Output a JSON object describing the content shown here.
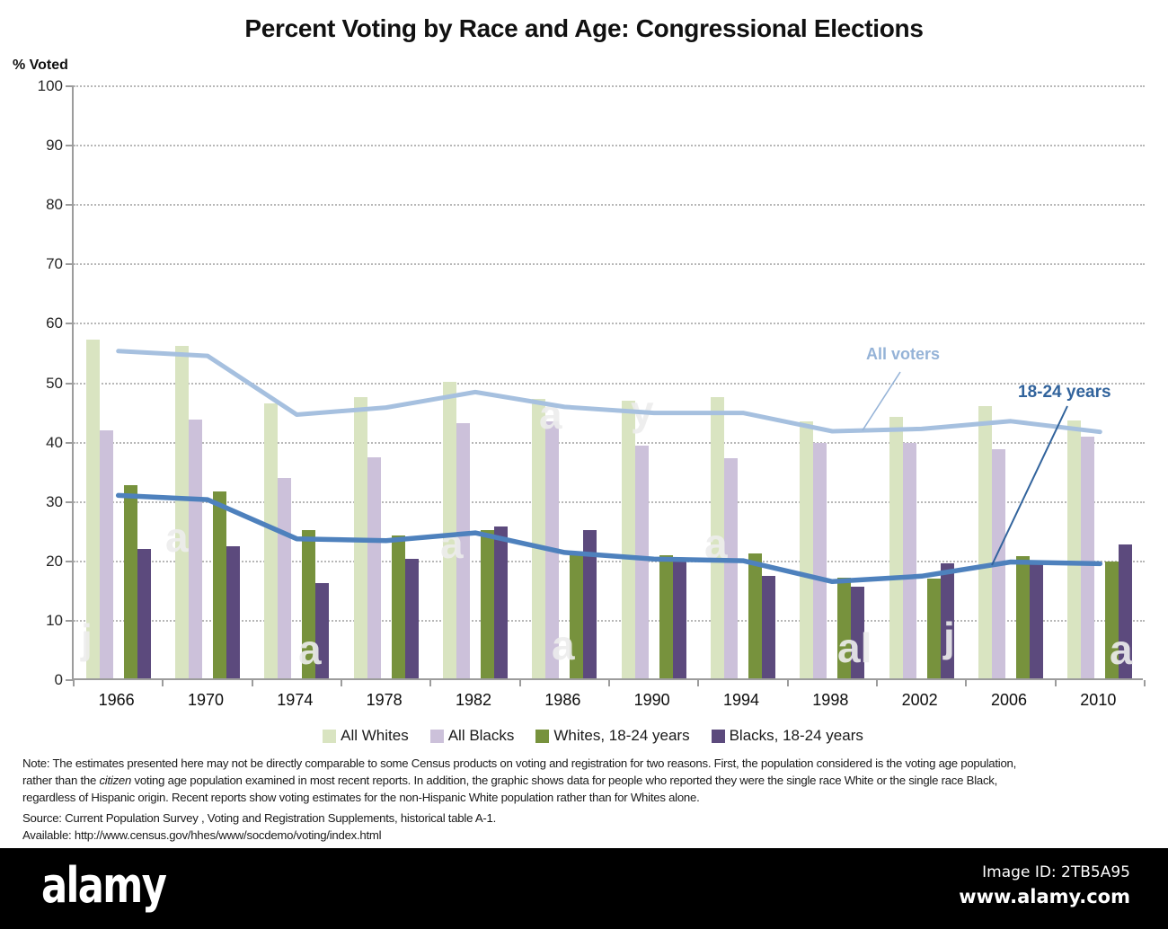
{
  "title": "Percent Voting by Race and Age:  Congressional Elections",
  "y_axis_title": "% Voted",
  "chart_data": {
    "type": "bar+line",
    "title": "Percent Voting by Race and Age:  Congressional Elections",
    "ylabel": "% Voted",
    "categories": [
      "1966",
      "1970",
      "1974",
      "1978",
      "1982",
      "1986",
      "1990",
      "1994",
      "1998",
      "2002",
      "2006",
      "2010"
    ],
    "series": [
      {
        "name": "All Whites",
        "color": "#D9E4C1",
        "values": [
          57.0,
          56.0,
          46.3,
          47.3,
          49.9,
          47.0,
          46.7,
          47.3,
          43.3,
          44.1,
          45.8,
          43.4
        ]
      },
      {
        "name": "All Blacks",
        "color": "#CCC1DA",
        "values": [
          41.7,
          43.5,
          33.8,
          37.2,
          43.0,
          43.2,
          39.2,
          37.1,
          39.6,
          39.7,
          38.6,
          40.7
        ]
      },
      {
        "name": "Whites, 18-24 years",
        "color": "#77923D",
        "values": [
          32.5,
          31.4,
          25.0,
          24.1,
          24.9,
          21.3,
          20.7,
          21.0,
          16.9,
          16.8,
          20.6,
          19.6
        ]
      },
      {
        "name": "Blacks, 18-24 years",
        "color": "#5C4A7D",
        "values": [
          21.8,
          22.3,
          16.1,
          20.1,
          25.5,
          25.0,
          19.9,
          17.3,
          15.4,
          19.3,
          19.2,
          22.5
        ]
      }
    ],
    "line_series": [
      {
        "name": "All voters",
        "color": "#A6C0DF",
        "values": [
          55.4,
          54.6,
          44.7,
          45.9,
          48.5,
          46.0,
          45.0,
          45.0,
          41.9,
          42.3,
          43.6,
          41.8
        ]
      },
      {
        "name": "18-24 years",
        "color": "#4E81BD",
        "values": [
          31.1,
          30.4,
          23.8,
          23.5,
          24.8,
          21.5,
          20.4,
          20.1,
          16.6,
          17.5,
          19.9,
          19.6
        ]
      }
    ],
    "ylim": [
      0,
      100
    ],
    "y_tick_step": 10,
    "grid": "horizontal-dotted",
    "legend_position": "bottom"
  },
  "annotations": {
    "all_voters_label": "All voters",
    "youth_label": "18-24 years"
  },
  "note": {
    "line1": "Note: The estimates presented here may not be directly comparable to some Census products on voting and registration for two reasons. First, the population considered is the voting age population,",
    "line2_pre": "rather than the ",
    "line2_italic": "citizen",
    "line2_post": " voting age population examined in most recent reports. In addition, the graphic shows data for people who reported they were the single race White or the single race Black,",
    "line3": "regardless of Hispanic origin. Recent reports show voting estimates for the non-Hispanic White population rather than for Whites alone.",
    "source": "Source: Current Population Survey , Voting and  Registration Supplements, historical table A-1.",
    "available": "Available: http://www.census.gov/hhes/www/socdemo/voting/index.html"
  },
  "footer": {
    "logo": "alamy",
    "image_id": "Image ID: 2TB5A95",
    "website": "www.alamy.com"
  },
  "colors": {
    "all_voters_line": "#A6C0DF",
    "youth_line": "#4E81BD",
    "all_voters_label": "#95B3D7",
    "youth_label": "#31639C",
    "gridline": "#9A9A9A",
    "footer_bg": "#000000"
  }
}
